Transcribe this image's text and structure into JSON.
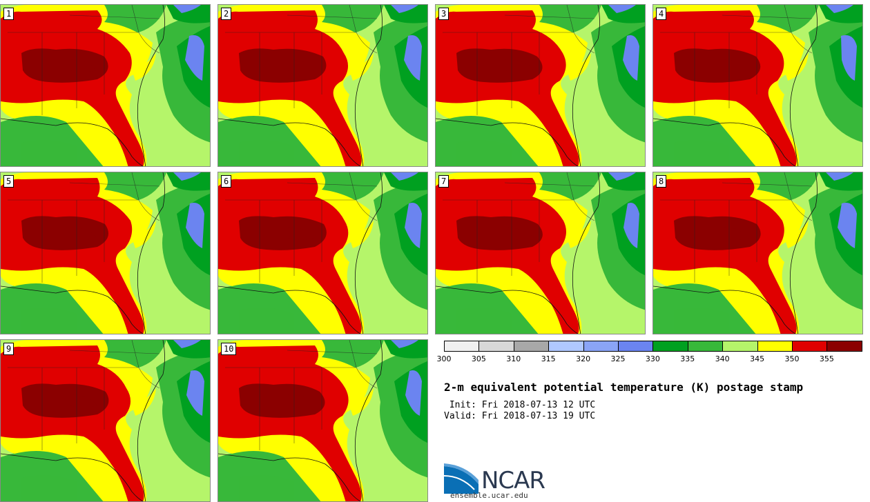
{
  "panels": [
    {
      "label": "1"
    },
    {
      "label": "2"
    },
    {
      "label": "3"
    },
    {
      "label": "4"
    },
    {
      "label": "5"
    },
    {
      "label": "6"
    },
    {
      "label": "7"
    },
    {
      "label": "8"
    },
    {
      "label": "9"
    },
    {
      "label": "10"
    }
  ],
  "legend": {
    "ticks": [
      "300",
      "305",
      "310",
      "315",
      "320",
      "325",
      "330",
      "335",
      "340",
      "345",
      "350",
      "355"
    ],
    "colors": [
      "#f0f0f0",
      "#d8d8d8",
      "#a8a8a8",
      "#b0c8ff",
      "#8aa4f6",
      "#6b84f0",
      "#00a020",
      "#38b83a",
      "#b5f56a",
      "#ffff00",
      "#e00000",
      "#8b0000"
    ]
  },
  "map_colors": {
    "darkgreen": "#00a020",
    "green": "#38b83a",
    "lightgreen": "#b5f56a",
    "yellow": "#ffff00",
    "red": "#e00000",
    "darkred": "#8b0000",
    "blue": "#6b84f0"
  },
  "info": {
    "title": "2-m equivalent potential temperature (K) postage stamp",
    "init": " Init: Fri 2018-07-13 12 UTC",
    "valid": "Valid: Fri 2018-07-13 19 UTC"
  },
  "logo": {
    "text": "NCAR",
    "url": "ensemble.ucar.edu"
  }
}
